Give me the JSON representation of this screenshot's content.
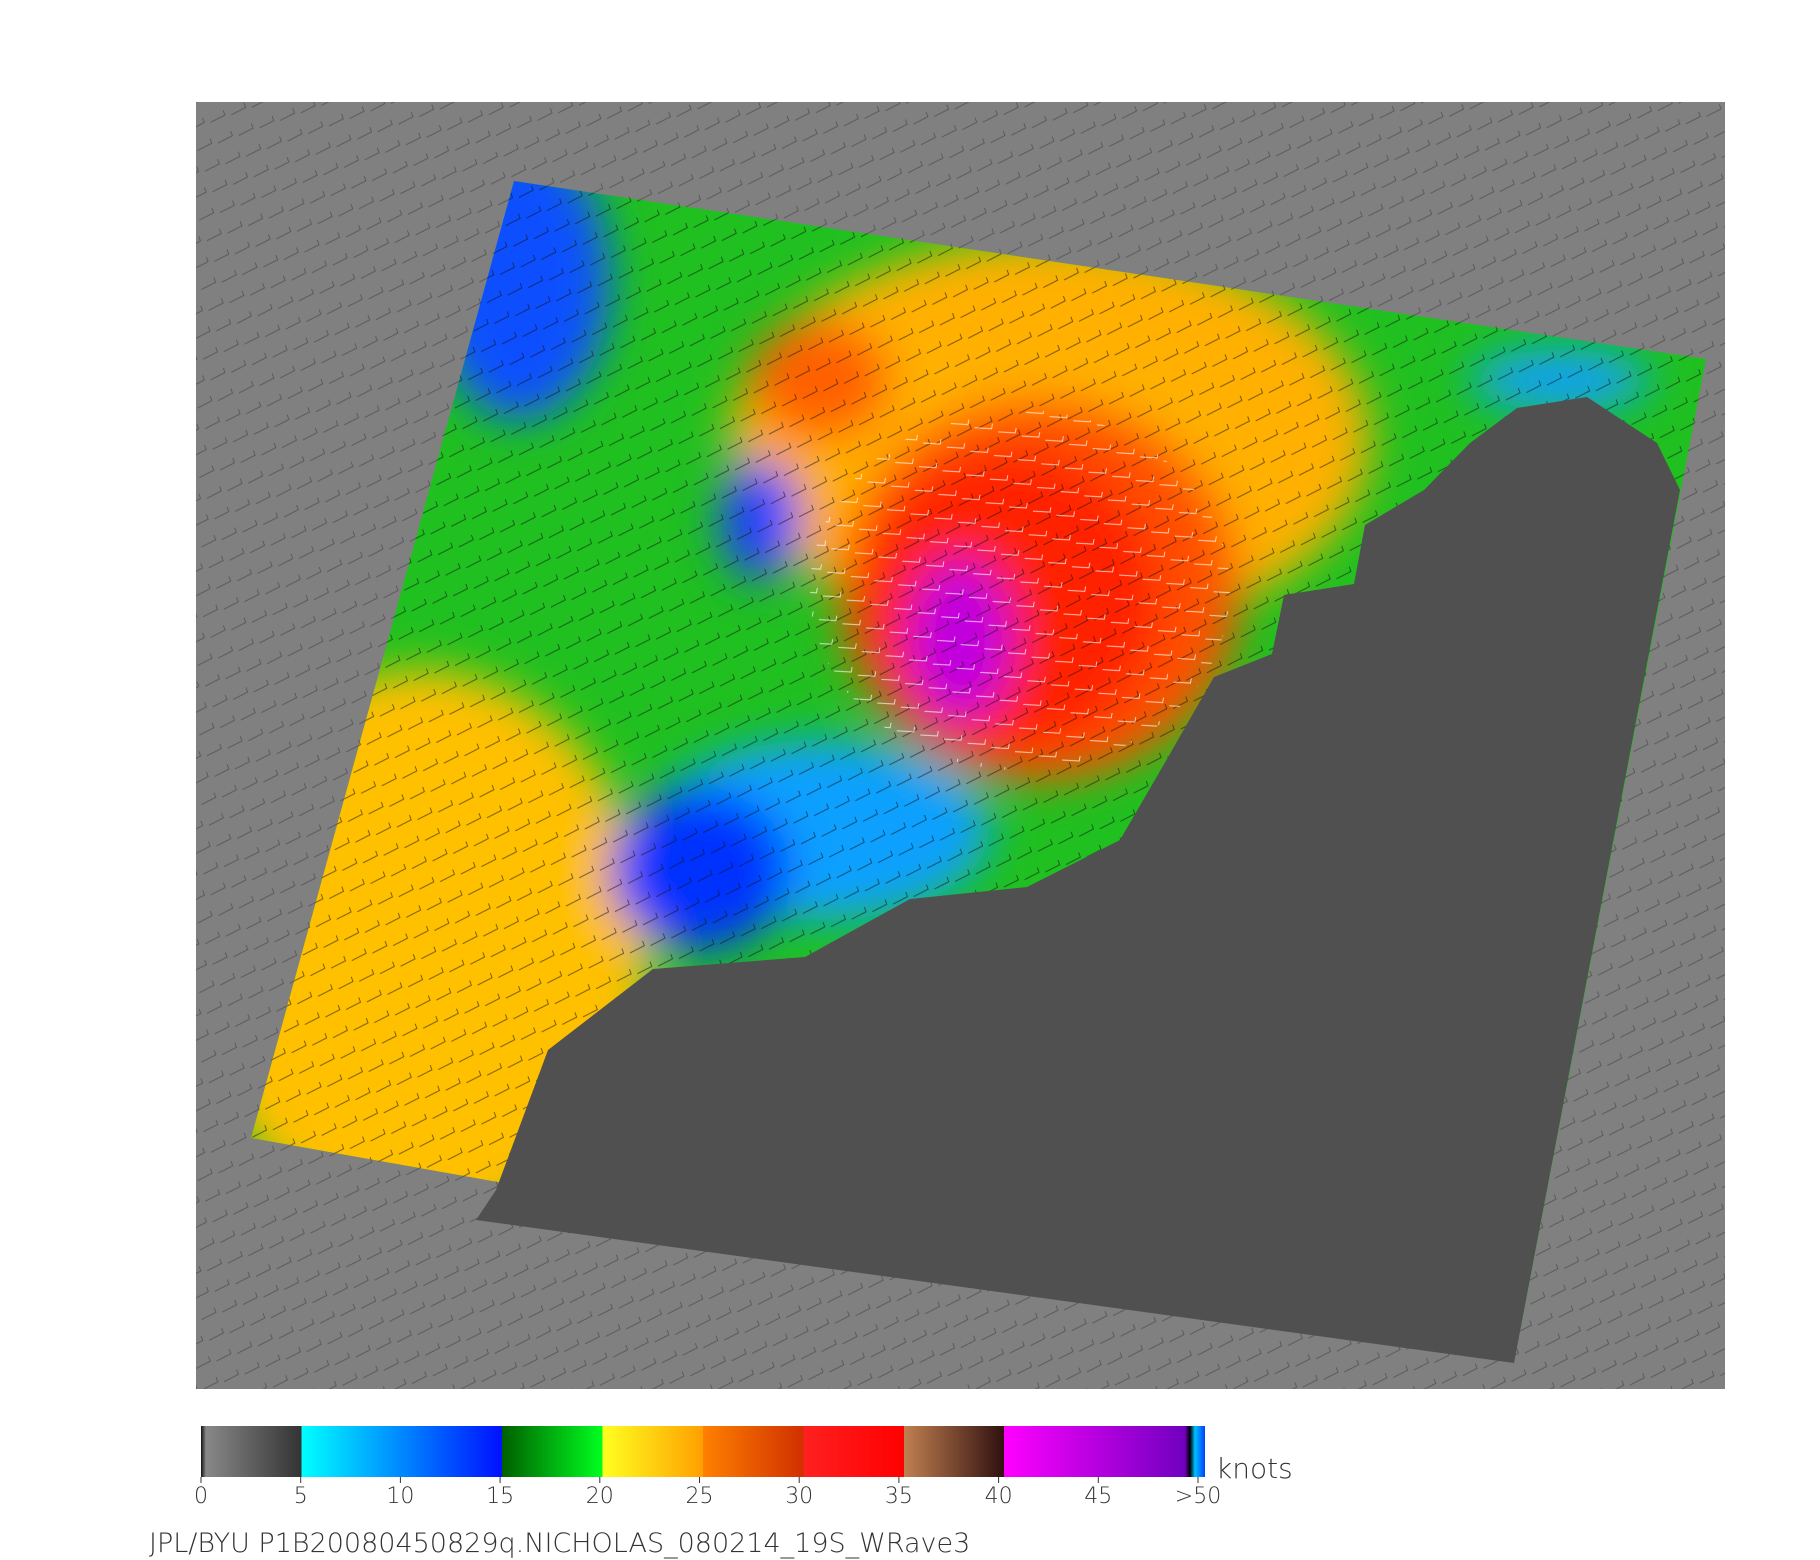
{
  "colorbar": {
    "unit": "knots",
    "ticks": [
      0,
      5,
      10,
      15,
      20,
      25,
      30,
      35,
      40,
      45,
      {
        "value": 50,
        "label": ">50"
      }
    ]
  },
  "caption": "JPL/BYU  P1B20080450829q.NICHOLAS_080214_19S_WRave3"
}
